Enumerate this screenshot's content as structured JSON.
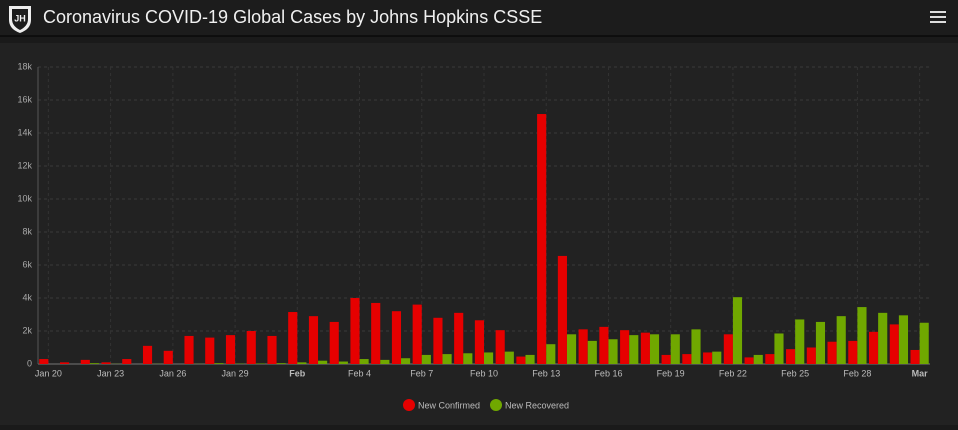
{
  "chart_data": {
    "type": "bar",
    "title": "Coronavirus COVID-19 Global Cases by Johns Hopkins CSSE",
    "categories": [
      "Jan 20",
      null,
      null,
      "Jan 23",
      null,
      null,
      "Jan 26",
      null,
      null,
      "Jan 29",
      null,
      null,
      "Feb",
      null,
      null,
      "Feb 4",
      null,
      null,
      "Feb 7",
      null,
      null,
      "Feb 10",
      null,
      null,
      "Feb 13",
      null,
      null,
      "Feb 16",
      null,
      null,
      "Feb 19",
      null,
      null,
      "Feb 22",
      null,
      null,
      "Feb 25",
      null,
      null,
      "Feb 28",
      null,
      null,
      "Mar"
    ],
    "series": [
      {
        "name": "New Confirmed",
        "color": "#e60000",
        "values": [
          300,
          100,
          250,
          100,
          300,
          1100,
          800,
          1700,
          1600,
          1750,
          2000,
          1700,
          3150,
          2900,
          2550,
          4000,
          3700,
          3200,
          3600,
          2800,
          3100,
          2650,
          2050,
          450,
          15150,
          6550,
          2100,
          2250,
          2050,
          1900,
          550,
          600,
          700,
          1800,
          400,
          600,
          900,
          1000,
          1350,
          1400,
          1950,
          2400,
          850
        ]
      },
      {
        "name": "New Recovered",
        "color": "#70a800",
        "values": [
          0,
          0,
          50,
          10,
          0,
          10,
          0,
          10,
          50,
          20,
          30,
          50,
          100,
          200,
          150,
          300,
          250,
          350,
          550,
          600,
          650,
          700,
          750,
          550,
          1200,
          1800,
          1400,
          1500,
          1750,
          1800,
          1800,
          2100,
          750,
          4050,
          550,
          1850,
          2700,
          2550,
          2900,
          3450,
          3100,
          2950,
          2500
        ]
      }
    ],
    "ylim": [
      0,
      18000
    ],
    "yticks": [
      0,
      {
        "value": 2000,
        "label": "2k"
      },
      {
        "value": 4000,
        "label": "4k"
      },
      {
        "value": 6000,
        "label": "6k"
      },
      {
        "value": 8000,
        "label": "8k"
      },
      {
        "value": 10000,
        "label": "10k"
      },
      {
        "value": 12000,
        "label": "12k"
      },
      {
        "value": 14000,
        "label": "14k"
      },
      {
        "value": 16000,
        "label": "16k"
      },
      {
        "value": 18000,
        "label": "18k"
      }
    ],
    "grid": true
  }
}
